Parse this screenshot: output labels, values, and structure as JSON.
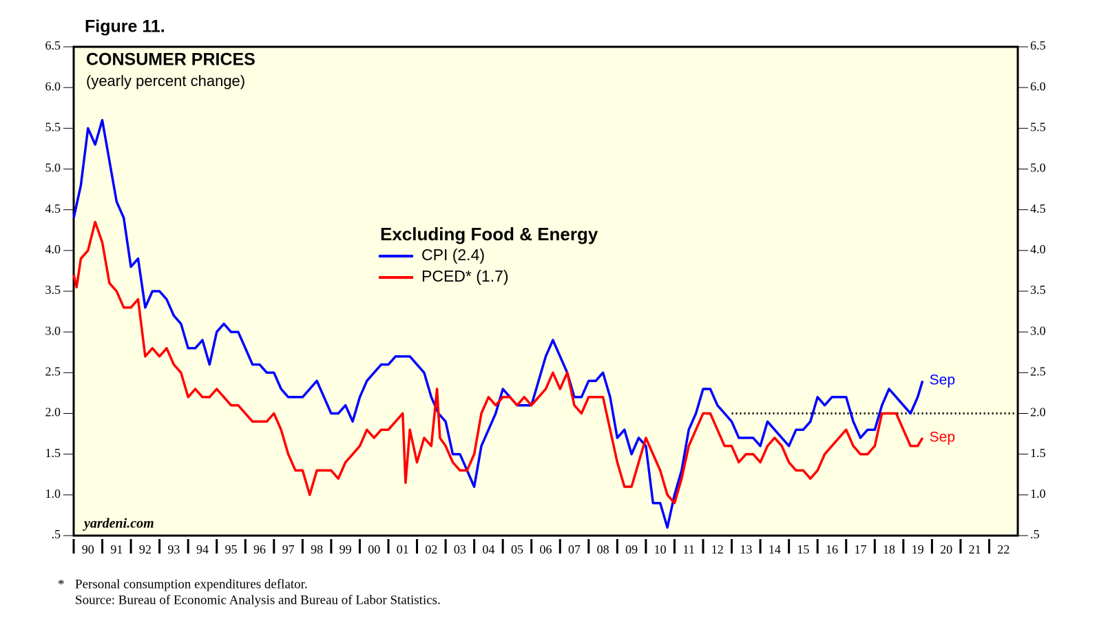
{
  "chart_data": {
    "type": "line",
    "figure_label": "Figure 11.",
    "title": "CONSUMER PRICES",
    "subtitle": "(yearly percent change)",
    "legend_title": "Excluding Food & Energy",
    "watermark": "yardeni.com",
    "footnote_marker": "*",
    "footnotes": [
      "Personal consumption expenditures deflator.",
      "Source: Bureau of Economic Analysis and Bureau of Labor Statistics."
    ],
    "background": "#ffffe3",
    "xlim": [
      1990,
      2023
    ],
    "xticks": [
      {
        "value": 1990,
        "label": "90"
      },
      {
        "value": 1991,
        "label": "91"
      },
      {
        "value": 1992,
        "label": "92"
      },
      {
        "value": 1993,
        "label": "93"
      },
      {
        "value": 1994,
        "label": "94"
      },
      {
        "value": 1995,
        "label": "95"
      },
      {
        "value": 1996,
        "label": "96"
      },
      {
        "value": 1997,
        "label": "97"
      },
      {
        "value": 1998,
        "label": "98"
      },
      {
        "value": 1999,
        "label": "99"
      },
      {
        "value": 2000,
        "label": "00"
      },
      {
        "value": 2001,
        "label": "01"
      },
      {
        "value": 2002,
        "label": "02"
      },
      {
        "value": 2003,
        "label": "03"
      },
      {
        "value": 2004,
        "label": "04"
      },
      {
        "value": 2005,
        "label": "05"
      },
      {
        "value": 2006,
        "label": "06"
      },
      {
        "value": 2007,
        "label": "07"
      },
      {
        "value": 2008,
        "label": "08"
      },
      {
        "value": 2009,
        "label": "09"
      },
      {
        "value": 2010,
        "label": "10"
      },
      {
        "value": 2011,
        "label": "11"
      },
      {
        "value": 2012,
        "label": "12"
      },
      {
        "value": 2013,
        "label": "13"
      },
      {
        "value": 2014,
        "label": "14"
      },
      {
        "value": 2015,
        "label": "15"
      },
      {
        "value": 2016,
        "label": "16"
      },
      {
        "value": 2017,
        "label": "17"
      },
      {
        "value": 2018,
        "label": "18"
      },
      {
        "value": 2019,
        "label": "19"
      },
      {
        "value": 2020,
        "label": "20"
      },
      {
        "value": 2021,
        "label": "21"
      },
      {
        "value": 2022,
        "label": "22"
      }
    ],
    "ylim": [
      0.5,
      6.5
    ],
    "yticks": [
      {
        "value": 0.5,
        "label": ".5"
      },
      {
        "value": 1,
        "label": "1.0"
      },
      {
        "value": 1.5,
        "label": "1.5"
      },
      {
        "value": 2,
        "label": "2.0"
      },
      {
        "value": 2.5,
        "label": "2.5"
      },
      {
        "value": 3,
        "label": "3.0"
      },
      {
        "value": 3.5,
        "label": "3.5"
      },
      {
        "value": 4,
        "label": "4.0"
      },
      {
        "value": 4.5,
        "label": "4.5"
      },
      {
        "value": 5,
        "label": "5.0"
      },
      {
        "value": 5.5,
        "label": "5.5"
      },
      {
        "value": 6,
        "label": "6.0"
      },
      {
        "value": 6.5,
        "label": "6.5"
      }
    ],
    "reference_line": {
      "value": 2,
      "from": 2013,
      "to": 2023
    },
    "series": [
      {
        "name": "CPI (2.4)",
        "color": "#0000ff",
        "end_label": "Sep",
        "x": [
          1990,
          1990.25,
          1990.5,
          1990.75,
          1991,
          1991.25,
          1991.5,
          1991.75,
          1992,
          1992.25,
          1992.5,
          1992.75,
          1993,
          1993.25,
          1993.5,
          1993.75,
          1994,
          1994.25,
          1994.5,
          1994.75,
          1995,
          1995.25,
          1995.5,
          1995.75,
          1996,
          1996.25,
          1996.5,
          1996.75,
          1997,
          1997.25,
          1997.5,
          1997.75,
          1998,
          1998.25,
          1998.5,
          1998.75,
          1999,
          1999.25,
          1999.5,
          1999.75,
          2000,
          2000.25,
          2000.5,
          2000.75,
          2001,
          2001.25,
          2001.5,
          2001.75,
          2002,
          2002.25,
          2002.5,
          2002.75,
          2003,
          2003.25,
          2003.5,
          2003.75,
          2004,
          2004.25,
          2004.5,
          2004.75,
          2005,
          2005.25,
          2005.5,
          2005.75,
          2006,
          2006.25,
          2006.5,
          2006.75,
          2007,
          2007.25,
          2007.5,
          2007.75,
          2008,
          2008.25,
          2008.5,
          2008.75,
          2009,
          2009.25,
          2009.5,
          2009.75,
          2010,
          2010.25,
          2010.5,
          2010.75,
          2011,
          2011.25,
          2011.5,
          2011.75,
          2012,
          2012.25,
          2012.5,
          2012.75,
          2013,
          2013.25,
          2013.5,
          2013.75,
          2014,
          2014.25,
          2014.5,
          2014.75,
          2015,
          2015.25,
          2015.5,
          2015.75,
          2016,
          2016.25,
          2016.5,
          2016.75,
          2017,
          2017.25,
          2017.5,
          2017.75,
          2018,
          2018.25,
          2018.5,
          2018.75,
          2019,
          2019.25,
          2019.5,
          2019.67
        ],
        "values": [
          4.4,
          4.8,
          5.5,
          5.3,
          5.6,
          5.1,
          4.6,
          4.4,
          3.8,
          3.9,
          3.3,
          3.5,
          3.5,
          3.4,
          3.2,
          3.1,
          2.8,
          2.8,
          2.9,
          2.6,
          3.0,
          3.1,
          3.0,
          3.0,
          2.8,
          2.6,
          2.6,
          2.5,
          2.5,
          2.3,
          2.2,
          2.2,
          2.2,
          2.3,
          2.4,
          2.2,
          2.0,
          2.0,
          2.1,
          1.9,
          2.2,
          2.4,
          2.5,
          2.6,
          2.6,
          2.7,
          2.7,
          2.7,
          2.6,
          2.5,
          2.2,
          2.0,
          1.9,
          1.5,
          1.5,
          1.3,
          1.1,
          1.6,
          1.8,
          2.0,
          2.3,
          2.2,
          2.1,
          2.1,
          2.1,
          2.4,
          2.7,
          2.9,
          2.7,
          2.5,
          2.2,
          2.2,
          2.4,
          2.4,
          2.5,
          2.2,
          1.7,
          1.8,
          1.5,
          1.7,
          1.6,
          0.9,
          0.9,
          0.6,
          1.0,
          1.3,
          1.8,
          2.0,
          2.3,
          2.3,
          2.1,
          2.0,
          1.9,
          1.7,
          1.7,
          1.7,
          1.6,
          1.9,
          1.8,
          1.7,
          1.6,
          1.8,
          1.8,
          1.9,
          2.2,
          2.1,
          2.2,
          2.2,
          2.2,
          1.9,
          1.7,
          1.8,
          1.8,
          2.1,
          2.3,
          2.2,
          2.1,
          2.0,
          2.2,
          2.4
        ]
      },
      {
        "name": "PCED* (1.7)",
        "color": "#ff0000",
        "end_label": "Sep",
        "x": [
          1990,
          1990.1,
          1990.25,
          1990.5,
          1990.75,
          1991,
          1991.25,
          1991.5,
          1991.75,
          1992,
          1992.25,
          1992.5,
          1992.75,
          1993,
          1993.25,
          1993.5,
          1993.75,
          1994,
          1994.25,
          1994.5,
          1994.75,
          1995,
          1995.25,
          1995.5,
          1995.75,
          1996,
          1996.25,
          1996.5,
          1996.75,
          1997,
          1997.25,
          1997.5,
          1997.75,
          1998,
          1998.25,
          1998.5,
          1998.75,
          1999,
          1999.25,
          1999.5,
          1999.75,
          2000,
          2000.25,
          2000.5,
          2000.75,
          2001,
          2001.25,
          2001.5,
          2001.6,
          2001.75,
          2002,
          2002.25,
          2002.5,
          2002.7,
          2002.8,
          2003,
          2003.25,
          2003.5,
          2003.75,
          2004,
          2004.25,
          2004.5,
          2004.75,
          2005,
          2005.25,
          2005.5,
          2005.75,
          2006,
          2006.25,
          2006.5,
          2006.75,
          2007,
          2007.25,
          2007.5,
          2007.75,
          2008,
          2008.25,
          2008.5,
          2008.75,
          2009,
          2009.25,
          2009.5,
          2009.75,
          2010,
          2010.25,
          2010.5,
          2010.75,
          2011,
          2011.25,
          2011.5,
          2011.75,
          2012,
          2012.25,
          2012.5,
          2012.75,
          2013,
          2013.25,
          2013.5,
          2013.75,
          2014,
          2014.25,
          2014.5,
          2014.75,
          2015,
          2015.25,
          2015.5,
          2015.75,
          2016,
          2016.25,
          2016.5,
          2016.75,
          2017,
          2017.25,
          2017.5,
          2017.75,
          2018,
          2018.25,
          2018.5,
          2018.75,
          2019,
          2019.25,
          2019.5,
          2019.67
        ],
        "values": [
          3.7,
          3.55,
          3.9,
          4.0,
          4.35,
          4.1,
          3.6,
          3.5,
          3.3,
          3.3,
          3.4,
          2.7,
          2.8,
          2.7,
          2.8,
          2.6,
          2.5,
          2.2,
          2.3,
          2.2,
          2.2,
          2.3,
          2.2,
          2.1,
          2.1,
          2.0,
          1.9,
          1.9,
          1.9,
          2.0,
          1.8,
          1.5,
          1.3,
          1.3,
          1.0,
          1.3,
          1.3,
          1.3,
          1.2,
          1.4,
          1.5,
          1.6,
          1.8,
          1.7,
          1.8,
          1.8,
          1.9,
          2.0,
          1.15,
          1.8,
          1.4,
          1.7,
          1.6,
          2.3,
          1.7,
          1.6,
          1.4,
          1.3,
          1.3,
          1.5,
          2.0,
          2.2,
          2.1,
          2.2,
          2.2,
          2.1,
          2.2,
          2.1,
          2.2,
          2.3,
          2.5,
          2.3,
          2.5,
          2.1,
          2.0,
          2.2,
          2.2,
          2.2,
          1.8,
          1.4,
          1.1,
          1.1,
          1.4,
          1.7,
          1.5,
          1.3,
          1.0,
          0.9,
          1.2,
          1.6,
          1.8,
          2.0,
          2.0,
          1.8,
          1.6,
          1.6,
          1.4,
          1.5,
          1.5,
          1.4,
          1.6,
          1.7,
          1.6,
          1.4,
          1.3,
          1.3,
          1.2,
          1.3,
          1.5,
          1.6,
          1.7,
          1.8,
          1.6,
          1.5,
          1.5,
          1.6,
          2.0,
          2.0,
          2.0,
          1.8,
          1.6,
          1.6,
          1.7
        ]
      }
    ]
  }
}
